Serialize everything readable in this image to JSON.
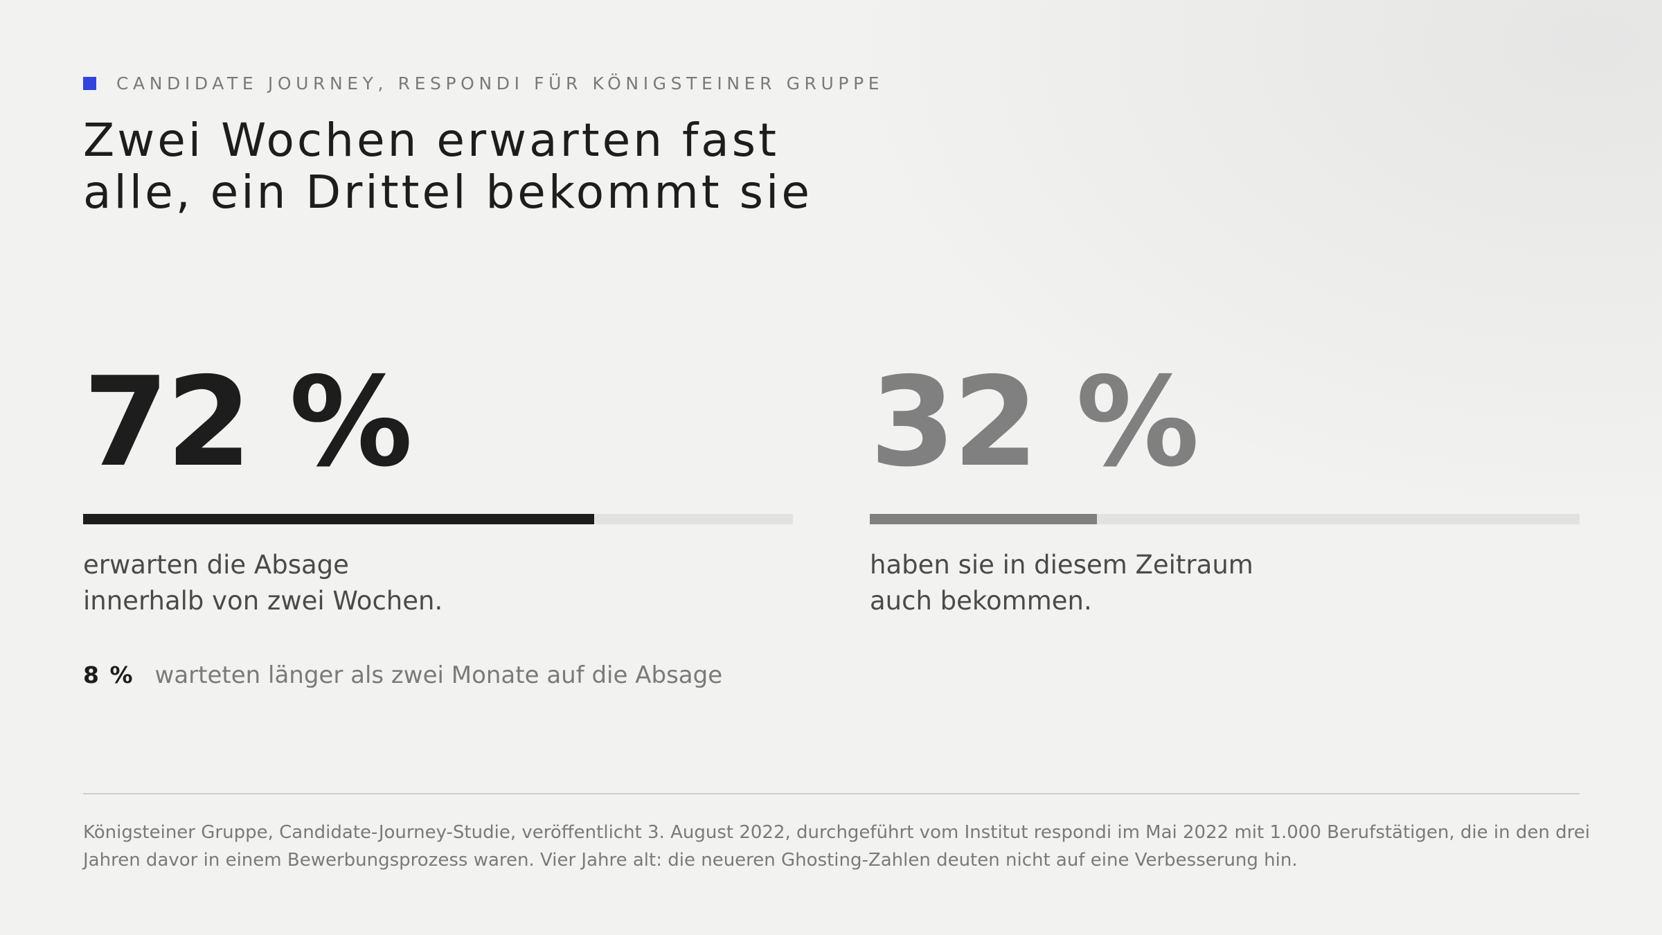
{
  "kicker": "CANDIDATE JOURNEY, RESPONDI FÜR KÖNIGSTEINER GRUPPE",
  "title": {
    "lines": [
      "Zwei Wochen erwarten fast",
      "alle, ein Drittel bekommt sie"
    ]
  },
  "colors": {
    "accent": "#3344dd",
    "primary": "#1d1d1d",
    "secondary": "#808080",
    "track": "#e2e2e0"
  },
  "chart_data": {
    "type": "bar",
    "orientation": "horizontal",
    "ylim": [
      0,
      100
    ],
    "unit": "%",
    "series": [
      {
        "display": "72 %",
        "value": 72,
        "color": "#1d1d1d",
        "caption": [
          "erwarten die Absage",
          "innerhalb von zwei Wochen."
        ]
      },
      {
        "display": "32 %",
        "value": 32,
        "color": "#808080",
        "caption": [
          "haben sie in diesem Zeitraum",
          "auch bekommen."
        ]
      }
    ],
    "annotation": {
      "value": "8 %",
      "text": "warteten länger als zwei Monate auf die Absage"
    }
  },
  "source": {
    "lines": [
      "Königsteiner Gruppe, Candidate-Journey-Studie, veröffentlicht 3. August 2022, durchgeführt vom Institut respondi im Mai 2022 mit 1.000 Berufstätigen, die in den drei",
      "Jahren davor in einem Bewerbungsprozess waren. Vier Jahre alt: die neueren Ghosting-Zahlen deuten nicht auf eine Verbesserung hin."
    ]
  }
}
